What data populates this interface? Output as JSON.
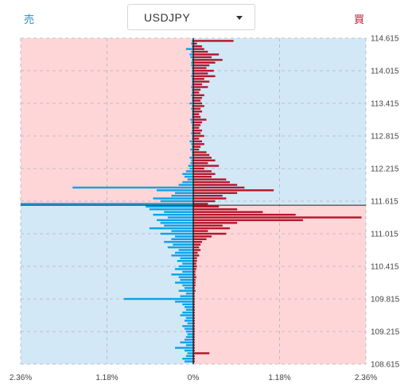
{
  "header": {
    "sell_label": "売",
    "buy_label": "買",
    "pair": "USDJPY",
    "caret_icon": "chevron-down-icon"
  },
  "colors": {
    "sell_bar": "#0aa3e8",
    "buy_bar": "#b5152b",
    "pink_bg": "#ffd6d8",
    "blue_bg": "#d3e8f6",
    "grid": "#aab4bc",
    "price_line": "#222222"
  },
  "chart_data": {
    "type": "bar",
    "orientation": "horizontal-diverging",
    "current_price": 111.54,
    "ylim": [
      108.615,
      114.615
    ],
    "xlim": [
      -2.36,
      2.36
    ],
    "y_ticks": [
      "114.615",
      "114.015",
      "113.415",
      "112.815",
      "112.215",
      "111.615",
      "111.015",
      "110.415",
      "109.815",
      "109.215",
      "108.615"
    ],
    "x_ticks": [
      "2.36%",
      "1.18%",
      "0%",
      "1.18%",
      "2.36%"
    ],
    "bucket_size": 0.05,
    "prices": [
      114.565,
      114.515,
      114.465,
      114.415,
      114.365,
      114.315,
      114.265,
      114.215,
      114.165,
      114.115,
      114.065,
      114.015,
      113.965,
      113.915,
      113.865,
      113.815,
      113.765,
      113.715,
      113.665,
      113.615,
      113.565,
      113.515,
      113.465,
      113.415,
      113.365,
      113.315,
      113.265,
      113.215,
      113.165,
      113.115,
      113.065,
      113.015,
      112.965,
      112.915,
      112.865,
      112.815,
      112.765,
      112.715,
      112.665,
      112.615,
      112.565,
      112.515,
      112.465,
      112.415,
      112.365,
      112.315,
      112.265,
      112.215,
      112.165,
      112.115,
      112.065,
      112.015,
      111.965,
      111.915,
      111.865,
      111.815,
      111.765,
      111.715,
      111.665,
      111.615,
      111.565,
      111.515,
      111.465,
      111.415,
      111.365,
      111.315,
      111.265,
      111.215,
      111.165,
      111.115,
      111.065,
      111.015,
      110.965,
      110.915,
      110.865,
      110.815,
      110.765,
      110.715,
      110.665,
      110.615,
      110.565,
      110.515,
      110.465,
      110.415,
      110.365,
      110.315,
      110.265,
      110.215,
      110.165,
      110.115,
      110.065,
      110.015,
      109.965,
      109.915,
      109.865,
      109.815,
      109.765,
      109.715,
      109.665,
      109.615,
      109.565,
      109.515,
      109.465,
      109.415,
      109.365,
      109.315,
      109.265,
      109.215,
      109.165,
      109.115,
      109.065,
      109.015,
      108.965,
      108.915,
      108.865,
      108.815,
      108.765,
      108.715,
      108.665
    ],
    "buy": [
      0.55,
      0.05,
      0.12,
      0.15,
      0.2,
      0.35,
      0.25,
      0.4,
      0.3,
      0.22,
      0.18,
      0.28,
      0.2,
      0.3,
      0.15,
      0.22,
      0.12,
      0.2,
      0.1,
      0.08,
      0.15,
      0.12,
      0.1,
      0.12,
      0.15,
      0.1,
      0.12,
      0.08,
      0.1,
      0.18,
      0.12,
      0.1,
      0.08,
      0.12,
      0.1,
      0.15,
      0.08,
      0.12,
      0.15,
      0.1,
      0.08,
      0.18,
      0.22,
      0.25,
      0.3,
      0.2,
      0.35,
      0.15,
      0.25,
      0.3,
      0.25,
      0.45,
      0.5,
      0.6,
      0.7,
      1.1,
      0.6,
      0.4,
      0.45,
      0.3,
      0.2,
      0.35,
      0.6,
      0.95,
      1.4,
      2.3,
      1.5,
      0.6,
      0.4,
      0.5,
      0.2,
      0.45,
      0.25,
      0.18,
      0.12,
      0.1,
      0.08,
      0.1,
      0.06,
      0.08,
      0.05,
      0.05,
      0.04,
      0.05,
      0.04,
      0.03,
      0.03,
      0.04,
      0.03,
      0.03,
      0.03,
      0.02,
      0.03,
      0.02,
      0.02,
      0.02,
      0.02,
      0.02,
      0.02,
      0.02,
      0.02,
      0.02,
      0.02,
      0.02,
      0.02,
      0.02,
      0.02,
      0.02,
      0.02,
      0.02,
      0.02,
      0.02,
      0.02,
      0.02,
      0.02,
      0.22,
      0.02,
      0.02,
      0.02,
      0.02
    ],
    "sell": [
      0.02,
      0.03,
      0.02,
      0.1,
      0.03,
      0.05,
      0.04,
      0.02,
      0.03,
      0.03,
      0.02,
      0.02,
      0.02,
      0.03,
      0.02,
      0.02,
      0.02,
      0.03,
      0.02,
      0.02,
      0.03,
      0.02,
      0.02,
      0.05,
      0.02,
      0.03,
      0.02,
      0.02,
      0.02,
      0.04,
      0.03,
      0.02,
      0.02,
      0.02,
      0.03,
      0.02,
      0.02,
      0.05,
      0.03,
      0.02,
      0.04,
      0.02,
      0.02,
      0.05,
      0.03,
      0.04,
      0.07,
      0.05,
      0.1,
      0.15,
      0.12,
      0.08,
      0.15,
      0.2,
      1.65,
      0.5,
      0.25,
      0.3,
      0.55,
      0.45,
      2.36,
      0.65,
      0.6,
      0.4,
      0.55,
      0.35,
      0.5,
      0.45,
      0.4,
      0.6,
      0.3,
      0.45,
      0.25,
      0.3,
      0.4,
      0.28,
      0.35,
      0.2,
      0.25,
      0.3,
      0.18,
      0.22,
      0.15,
      0.2,
      0.25,
      0.15,
      0.3,
      0.2,
      0.18,
      0.25,
      0.15,
      0.12,
      0.2,
      0.1,
      0.18,
      0.95,
      0.25,
      0.15,
      0.12,
      0.1,
      0.15,
      0.18,
      0.1,
      0.12,
      0.08,
      0.15,
      0.12,
      0.1,
      0.08,
      0.1,
      0.12,
      0.18,
      0.1,
      0.25,
      0.12,
      0.08,
      0.1,
      0.15,
      0.12,
      0.08
    ]
  }
}
